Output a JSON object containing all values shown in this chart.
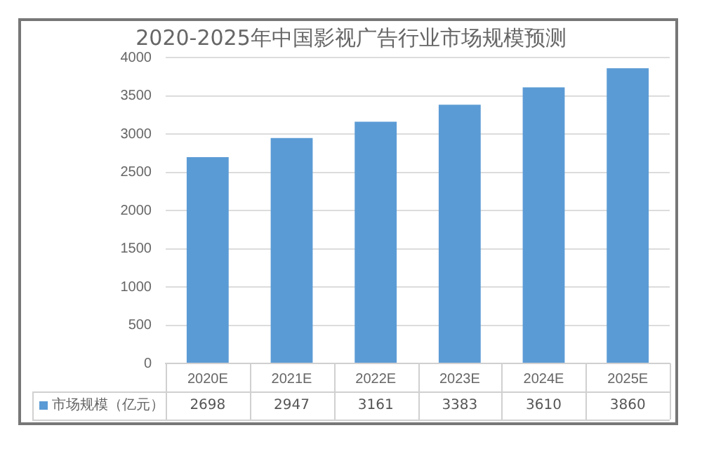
{
  "chart_data": {
    "type": "bar",
    "title": "2020-2025年中国影视广告行业市场规模预测",
    "categories": [
      "2020E",
      "2021E",
      "2022E",
      "2023E",
      "2024E",
      "2025E"
    ],
    "series": [
      {
        "name": "市场规模（亿元）",
        "color": "#5b9bd5",
        "values": [
          2698,
          2947,
          3161,
          3383,
          3610,
          3860
        ]
      }
    ],
    "ylim": [
      0,
      4000
    ],
    "yticks": [
      0,
      500,
      1000,
      1500,
      2000,
      2500,
      3000,
      3500,
      4000
    ],
    "grid": "y",
    "legend": "bottom",
    "data_labels": true
  }
}
